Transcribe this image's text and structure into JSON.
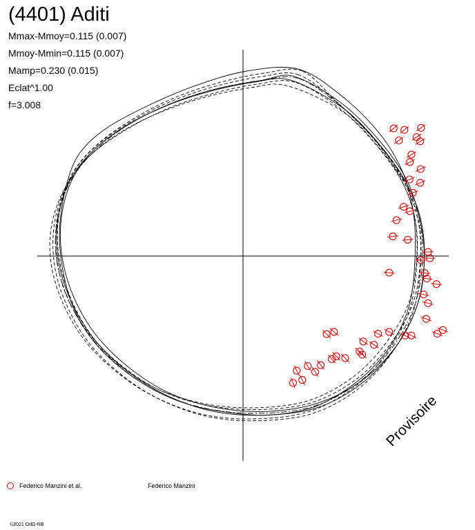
{
  "chart_data": {
    "type": "scatter",
    "title": "(4401) Aditi",
    "stats": [
      "Mmax-Mmoy=0.115 (0.007)",
      "Mmoy-Mmin=0.115 (0.007)",
      "Mamp=0.230 (0.015)",
      "Eclat^1.00",
      "f=3.008"
    ],
    "watermark": "Provisoire",
    "legend": [
      {
        "label": "Federico Manzini et al.",
        "marker": "circle",
        "color": "#e00000"
      },
      {
        "label": "Federico Manzini",
        "marker": "none",
        "color": "#000000"
      }
    ],
    "copyright": "©2021 OdG-RB",
    "colors": {
      "points": "#e00000",
      "curves": "#000000"
    },
    "axis_range": [
      -1.0,
      1.0
    ],
    "grid": false,
    "series": [
      {
        "marker": "circle-with-errorbar",
        "points": [
          [
            0.814,
            0.69
          ],
          [
            0.872,
            0.682
          ],
          [
            0.842,
            0.625
          ],
          [
            0.962,
            0.693
          ],
          [
            0.938,
            0.643
          ],
          [
            0.958,
            0.62
          ],
          [
            0.91,
            0.548
          ],
          [
            0.902,
            0.508
          ],
          [
            0.96,
            0.47
          ],
          [
            0.9,
            0.414
          ],
          [
            0.958,
            0.396
          ],
          [
            0.918,
            0.342
          ],
          [
            0.868,
            0.266
          ],
          [
            0.902,
            0.242
          ],
          [
            0.83,
            0.194
          ],
          [
            0.81,
            0.106
          ],
          [
            0.89,
            0.088
          ],
          [
            1.0,
            0.022
          ],
          [
            1.01,
            -0.012
          ],
          [
            0.962,
            -0.022
          ],
          [
            0.982,
            -0.092
          ],
          [
            0.994,
            -0.122
          ],
          [
            1.046,
            -0.152
          ],
          [
            0.976,
            -0.208
          ],
          [
            1.0,
            -0.255
          ],
          [
            0.99,
            -0.34
          ],
          [
            1.08,
            -0.4
          ],
          [
            1.05,
            -0.42
          ],
          [
            0.876,
            -0.43
          ],
          [
            0.91,
            -0.43
          ],
          [
            0.79,
            -0.41
          ],
          [
            0.73,
            -0.42
          ],
          [
            0.65,
            -0.462
          ],
          [
            0.708,
            -0.48
          ],
          [
            0.63,
            -0.516
          ],
          [
            0.644,
            -0.533
          ],
          [
            0.504,
            -0.542
          ],
          [
            0.552,
            -0.552
          ],
          [
            0.48,
            -0.557
          ],
          [
            0.35,
            -0.595
          ],
          [
            0.42,
            -0.59
          ],
          [
            0.29,
            -0.62
          ],
          [
            0.39,
            -0.626
          ],
          [
            0.32,
            -0.67
          ],
          [
            0.27,
            -0.686
          ],
          [
            0.452,
            -0.422
          ],
          [
            0.492,
            -0.41
          ],
          [
            0.79,
            -0.09
          ]
        ]
      }
    ],
    "curves": [
      {
        "style": "solid",
        "points": [
          [
            0.3,
            1.01
          ],
          [
            0.02,
            1.0
          ],
          [
            -0.26,
            0.92
          ],
          [
            -0.52,
            0.81
          ],
          [
            -0.74,
            0.69
          ],
          [
            -0.88,
            0.56
          ],
          [
            -0.95,
            0.4
          ],
          [
            -0.99,
            0.17
          ],
          [
            -0.98,
            -0.04
          ],
          [
            -0.92,
            -0.27
          ],
          [
            -0.8,
            -0.47
          ],
          [
            -0.6,
            -0.65
          ],
          [
            -0.36,
            -0.78
          ],
          [
            -0.12,
            -0.84
          ],
          [
            0.14,
            -0.86
          ],
          [
            0.4,
            -0.81
          ],
          [
            0.64,
            -0.66
          ],
          [
            0.8,
            -0.48
          ],
          [
            0.9,
            -0.26
          ],
          [
            0.93,
            0.0
          ],
          [
            0.92,
            0.24
          ],
          [
            0.86,
            0.46
          ],
          [
            0.74,
            0.66
          ],
          [
            0.54,
            0.86
          ]
        ]
      },
      {
        "style": "solid",
        "points": [
          [
            0.28,
            0.97
          ],
          [
            0.1,
            0.95
          ],
          [
            -0.16,
            0.9
          ],
          [
            -0.4,
            0.82
          ],
          [
            -0.62,
            0.71
          ],
          [
            -0.8,
            0.58
          ],
          [
            -0.92,
            0.42
          ],
          [
            -0.98,
            0.22
          ],
          [
            -0.98,
            0.01
          ],
          [
            -0.92,
            -0.21
          ],
          [
            -0.8,
            -0.42
          ],
          [
            -0.62,
            -0.6
          ],
          [
            -0.4,
            -0.74
          ],
          [
            -0.14,
            -0.82
          ],
          [
            0.14,
            -0.84
          ],
          [
            0.42,
            -0.79
          ],
          [
            0.66,
            -0.66
          ],
          [
            0.84,
            -0.47
          ],
          [
            0.95,
            -0.24
          ],
          [
            0.98,
            0.0
          ],
          [
            0.95,
            0.22
          ],
          [
            0.88,
            0.42
          ],
          [
            0.74,
            0.62
          ],
          [
            0.54,
            0.82
          ]
        ]
      },
      {
        "style": "solid",
        "points": [
          [
            0.26,
            0.95
          ],
          [
            0.06,
            0.94
          ],
          [
            -0.18,
            0.89
          ],
          [
            -0.42,
            0.81
          ],
          [
            -0.64,
            0.7
          ],
          [
            -0.82,
            0.56
          ],
          [
            -0.94,
            0.4
          ],
          [
            -1.0,
            0.2
          ],
          [
            -1.0,
            -0.01
          ],
          [
            -0.94,
            -0.22
          ],
          [
            -0.82,
            -0.43
          ],
          [
            -0.64,
            -0.61
          ],
          [
            -0.42,
            -0.75
          ],
          [
            -0.16,
            -0.84
          ],
          [
            0.12,
            -0.86
          ],
          [
            0.4,
            -0.82
          ],
          [
            0.64,
            -0.69
          ],
          [
            0.82,
            -0.5
          ],
          [
            0.94,
            -0.27
          ],
          [
            0.98,
            -0.02
          ],
          [
            0.96,
            0.2
          ],
          [
            0.88,
            0.4
          ],
          [
            0.74,
            0.6
          ],
          [
            0.54,
            0.8
          ]
        ]
      },
      {
        "style": "dashed",
        "points": [
          [
            0.3,
            0.98
          ],
          [
            0.1,
            0.97
          ],
          [
            -0.14,
            0.92
          ],
          [
            -0.38,
            0.84
          ],
          [
            -0.6,
            0.73
          ],
          [
            -0.8,
            0.59
          ],
          [
            -0.93,
            0.43
          ],
          [
            -1.0,
            0.23
          ],
          [
            -1.01,
            0.02
          ],
          [
            -0.96,
            -0.2
          ],
          [
            -0.84,
            -0.41
          ],
          [
            -0.66,
            -0.59
          ],
          [
            -0.44,
            -0.73
          ],
          [
            -0.18,
            -0.81
          ],
          [
            0.1,
            -0.83
          ],
          [
            0.38,
            -0.79
          ],
          [
            0.62,
            -0.66
          ],
          [
            0.8,
            -0.47
          ],
          [
            0.92,
            -0.25
          ],
          [
            0.96,
            0.0
          ],
          [
            0.94,
            0.22
          ],
          [
            0.86,
            0.42
          ],
          [
            0.72,
            0.62
          ],
          [
            0.52,
            0.82
          ]
        ]
      },
      {
        "style": "dashed",
        "points": [
          [
            0.24,
            0.92
          ],
          [
            0.04,
            0.91
          ],
          [
            -0.2,
            0.86
          ],
          [
            -0.44,
            0.78
          ],
          [
            -0.66,
            0.67
          ],
          [
            -0.84,
            0.53
          ],
          [
            -0.96,
            0.37
          ],
          [
            -1.02,
            0.17
          ],
          [
            -1.02,
            -0.04
          ],
          [
            -0.96,
            -0.25
          ],
          [
            -0.84,
            -0.46
          ],
          [
            -0.66,
            -0.64
          ],
          [
            -0.44,
            -0.78
          ],
          [
            -0.18,
            -0.87
          ],
          [
            0.1,
            -0.89
          ],
          [
            0.38,
            -0.85
          ],
          [
            0.62,
            -0.72
          ],
          [
            0.8,
            -0.53
          ],
          [
            0.92,
            -0.3
          ],
          [
            0.96,
            -0.04
          ],
          [
            0.95,
            0.18
          ],
          [
            0.88,
            0.38
          ],
          [
            0.74,
            0.58
          ],
          [
            0.54,
            0.78
          ]
        ]
      },
      {
        "style": "dashed",
        "points": [
          [
            0.32,
            1.0
          ],
          [
            0.12,
            0.99
          ],
          [
            -0.12,
            0.94
          ],
          [
            -0.36,
            0.86
          ],
          [
            -0.58,
            0.75
          ],
          [
            -0.78,
            0.61
          ],
          [
            -0.92,
            0.45
          ],
          [
            -0.99,
            0.25
          ],
          [
            -1.0,
            0.04
          ],
          [
            -0.95,
            -0.18
          ],
          [
            -0.84,
            -0.4
          ],
          [
            -0.68,
            -0.58
          ],
          [
            -0.46,
            -0.72
          ],
          [
            -0.2,
            -0.8
          ],
          [
            0.08,
            -0.82
          ],
          [
            0.36,
            -0.78
          ],
          [
            0.6,
            -0.65
          ],
          [
            0.78,
            -0.46
          ],
          [
            0.9,
            -0.24
          ],
          [
            0.94,
            0.02
          ],
          [
            0.92,
            0.24
          ],
          [
            0.84,
            0.44
          ],
          [
            0.7,
            0.64
          ],
          [
            0.5,
            0.84
          ]
        ]
      },
      {
        "style": "dashed",
        "points": [
          [
            0.28,
            0.94
          ],
          [
            0.08,
            0.93
          ],
          [
            -0.16,
            0.88
          ],
          [
            -0.4,
            0.8
          ],
          [
            -0.62,
            0.69
          ],
          [
            -0.82,
            0.55
          ],
          [
            -0.95,
            0.39
          ],
          [
            -1.03,
            0.19
          ],
          [
            -1.04,
            -0.02
          ],
          [
            -0.98,
            -0.24
          ],
          [
            -0.86,
            -0.45
          ],
          [
            -0.68,
            -0.63
          ],
          [
            -0.46,
            -0.77
          ],
          [
            -0.2,
            -0.86
          ],
          [
            0.08,
            -0.88
          ],
          [
            0.36,
            -0.84
          ],
          [
            0.6,
            -0.71
          ],
          [
            0.78,
            -0.52
          ],
          [
            0.9,
            -0.29
          ],
          [
            0.94,
            -0.03
          ],
          [
            0.93,
            0.2
          ],
          [
            0.86,
            0.4
          ],
          [
            0.72,
            0.6
          ],
          [
            0.52,
            0.8
          ]
        ]
      },
      {
        "style": "dashdot",
        "points": [
          [
            0.3,
            0.96
          ],
          [
            0.1,
            0.95
          ],
          [
            -0.16,
            0.9
          ],
          [
            -0.4,
            0.82
          ],
          [
            -0.62,
            0.71
          ],
          [
            -0.8,
            0.57
          ],
          [
            -0.93,
            0.41
          ],
          [
            -1.0,
            0.21
          ],
          [
            -1.01,
            0.0
          ],
          [
            -0.95,
            -0.22
          ],
          [
            -0.83,
            -0.43
          ],
          [
            -0.65,
            -0.61
          ],
          [
            -0.43,
            -0.75
          ],
          [
            -0.17,
            -0.83
          ],
          [
            0.11,
            -0.85
          ],
          [
            0.39,
            -0.81
          ],
          [
            0.63,
            -0.68
          ],
          [
            0.81,
            -0.49
          ],
          [
            0.93,
            -0.26
          ],
          [
            0.97,
            -0.01
          ],
          [
            0.95,
            0.21
          ],
          [
            0.87,
            0.41
          ],
          [
            0.73,
            0.61
          ],
          [
            0.53,
            0.81
          ]
        ]
      }
    ]
  }
}
